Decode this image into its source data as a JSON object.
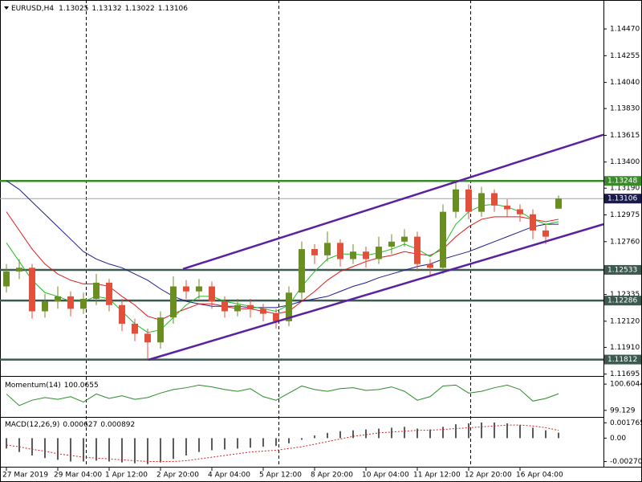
{
  "chart_data": [
    {
      "type": "candlestick",
      "title": "EURUSD,H4",
      "header_values": [
        1.13025,
        1.13132,
        1.13022,
        1.13106
      ],
      "categories": [
        "27 Mar 2019",
        null,
        null,
        null,
        "29 Mar 04:00",
        null,
        null,
        null,
        "1 Apr 12:00",
        null,
        null,
        null,
        "2 Apr 20:00",
        null,
        null,
        null,
        "4 Apr 04:00",
        null,
        null,
        null,
        "5 Apr 12:00",
        null,
        null,
        null,
        "8 Apr 20:00",
        null,
        null,
        null,
        "10 Apr 04:00",
        null,
        null,
        null,
        "11 Apr 12:00",
        null,
        null,
        null,
        "12 Apr 20:00",
        null,
        null,
        null,
        "16 Apr 04:00",
        null,
        null,
        null
      ],
      "open": [
        1.124,
        1.1252,
        1.1255,
        1.122,
        1.1228,
        1.1232,
        1.1222,
        1.123,
        1.1243,
        1.1225,
        1.121,
        1.1202,
        1.1195,
        1.1215,
        1.124,
        1.1236,
        1.124,
        1.1228,
        1.122,
        1.1225,
        1.1222,
        1.1218,
        1.1212,
        1.1235,
        1.127,
        1.1265,
        1.1275,
        1.1262,
        1.1268,
        1.1262,
        1.1272,
        1.1276,
        1.128,
        1.1258,
        1.1255,
        1.13,
        1.1318,
        1.13,
        1.1315,
        1.1305,
        1.1302,
        1.1298,
        1.1285,
        1.13025
      ],
      "high": [
        1.1258,
        1.1262,
        1.1258,
        1.1234,
        1.124,
        1.1236,
        1.1235,
        1.125,
        1.1246,
        1.123,
        1.1214,
        1.1206,
        1.122,
        1.1248,
        1.1245,
        1.1246,
        1.1244,
        1.1232,
        1.123,
        1.123,
        1.1226,
        1.1222,
        1.124,
        1.1276,
        1.1274,
        1.1284,
        1.1278,
        1.1274,
        1.1272,
        1.128,
        1.1282,
        1.1286,
        1.1284,
        1.1262,
        1.1306,
        1.1325,
        1.1322,
        1.132,
        1.1318,
        1.131,
        1.1306,
        1.1302,
        1.129,
        1.13132
      ],
      "low": [
        1.1235,
        1.1246,
        1.1214,
        1.1215,
        1.1222,
        1.1216,
        1.1218,
        1.1225,
        1.122,
        1.1204,
        1.1196,
        1.1182,
        1.119,
        1.121,
        1.123,
        1.123,
        1.1222,
        1.1215,
        1.1216,
        1.1215,
        1.1212,
        1.1206,
        1.1208,
        1.123,
        1.1258,
        1.126,
        1.1256,
        1.1258,
        1.1255,
        1.1258,
        1.1266,
        1.1272,
        1.1252,
        1.1248,
        1.125,
        1.1295,
        1.1294,
        1.1296,
        1.13,
        1.1296,
        1.1292,
        1.1278,
        1.1274,
        1.13022
      ],
      "close": [
        1.1252,
        1.1255,
        1.122,
        1.1228,
        1.1232,
        1.1222,
        1.123,
        1.1243,
        1.1225,
        1.121,
        1.1202,
        1.1195,
        1.1215,
        1.124,
        1.1236,
        1.124,
        1.1228,
        1.122,
        1.1225,
        1.1222,
        1.1218,
        1.1212,
        1.1235,
        1.127,
        1.1265,
        1.1275,
        1.1262,
        1.1268,
        1.1262,
        1.1272,
        1.1276,
        1.128,
        1.1258,
        1.1255,
        1.13,
        1.1318,
        1.13,
        1.1315,
        1.1305,
        1.1302,
        1.1298,
        1.1285,
        1.128,
        1.13106
      ],
      "up_color": "#6b8e23",
      "down_color": "#e0503a",
      "overlays": [
        {
          "color": "#1c1c8c",
          "values": [
            1.1325,
            1.1318,
            1.1308,
            1.1298,
            1.1288,
            1.1278,
            1.1268,
            1.1262,
            1.1258,
            1.1255,
            1.125,
            1.1245,
            1.1238,
            1.1232,
            1.1228,
            1.1226,
            1.1224,
            1.1224,
            1.1224,
            1.1223,
            1.1223,
            1.1223,
            1.1225,
            1.1228,
            1.123,
            1.1232,
            1.1236,
            1.124,
            1.1243,
            1.1247,
            1.125,
            1.1253,
            1.1256,
            1.1258,
            1.1262,
            1.1265,
            1.1268,
            1.1272,
            1.1276,
            1.128,
            1.1284,
            1.1288,
            1.129,
            1.129
          ]
        },
        {
          "color": "#dd1a1a",
          "values": [
            1.13,
            1.1285,
            1.127,
            1.1258,
            1.125,
            1.1245,
            1.1242,
            1.1242,
            1.124,
            1.1232,
            1.1225,
            1.1216,
            1.1213,
            1.1218,
            1.1222,
            1.1226,
            1.1226,
            1.1224,
            1.1222,
            1.1222,
            1.122,
            1.1218,
            1.122,
            1.1228,
            1.1236,
            1.1245,
            1.1252,
            1.1256,
            1.126,
            1.1263,
            1.1265,
            1.1268,
            1.1266,
            1.1265,
            1.127,
            1.128,
            1.1288,
            1.1294,
            1.1296,
            1.1296,
            1.1296,
            1.1294,
            1.1292,
            1.1294
          ]
        },
        {
          "color": "#22bb22",
          "values": [
            1.1275,
            1.126,
            1.1245,
            1.1235,
            1.1232,
            1.1228,
            1.1228,
            1.1232,
            1.123,
            1.122,
            1.121,
            1.1203,
            1.1205,
            1.1215,
            1.1225,
            1.1232,
            1.1232,
            1.1228,
            1.1226,
            1.1224,
            1.1222,
            1.122,
            1.1225,
            1.124,
            1.1252,
            1.1262,
            1.1266,
            1.1266,
            1.1265,
            1.1267,
            1.127,
            1.1274,
            1.127,
            1.1264,
            1.1272,
            1.129,
            1.13,
            1.1305,
            1.1306,
            1.1304,
            1.13,
            1.1294,
            1.129,
            1.1292
          ]
        }
      ],
      "trendlines": [
        {
          "x": [
            13.75,
            46.5
          ],
          "y": [
            1.1254,
            1.1362
          ],
          "color": "#5a22a0"
        },
        {
          "x": [
            11.06,
            46.5
          ],
          "y": [
            1.1181,
            1.129
          ],
          "color": "#5a22a0"
        }
      ],
      "levels": [
        {
          "value": 1.13248,
          "color": "#3a8a2a"
        },
        {
          "value": 1.13106,
          "color": "#1a1a4a"
        },
        {
          "value": 1.12533,
          "color": "#3c5a50"
        },
        {
          "value": 1.12286,
          "color": "#3c5a50"
        },
        {
          "value": 1.11812,
          "color": "#3c5a50"
        }
      ],
      "ylim": [
        1.1168,
        1.1469
      ],
      "yticks": [
        {
          "value": 1.1447,
          "label": "1.14470"
        },
        1.14255,
        {
          "value": 1.1404,
          "label": "1.14040"
        },
        {
          "value": 1.1383,
          "label": "1.13830"
        },
        1.13615,
        {
          "value": 1.134,
          "label": "1.13400"
        },
        {
          "value": 1.1319,
          "label": "1.13190"
        },
        1.12975,
        {
          "value": 1.1276,
          "label": "1.12760"
        },
        1.12335,
        {
          "value": 1.1212,
          "label": "1.12120"
        },
        {
          "value": 1.1191,
          "label": "1.11910"
        },
        1.11695
      ]
    },
    {
      "type": "line",
      "title": "Momentum(14)",
      "current": 100.0655,
      "color": "#2a8a2a",
      "values": [
        100.05,
        99.4,
        99.7,
        99.85,
        99.75,
        99.9,
        99.6,
        100.05,
        99.8,
        99.95,
        99.75,
        99.85,
        100.1,
        100.3,
        100.4,
        100.55,
        100.45,
        100.3,
        100.2,
        100.35,
        99.9,
        99.7,
        100.1,
        100.5,
        100.3,
        100.2,
        100.35,
        100.4,
        100.25,
        100.3,
        100.45,
        100.2,
        99.7,
        99.9,
        100.5,
        100.55,
        100.1,
        100.2,
        100.4,
        100.55,
        100.3,
        99.65,
        99.8,
        100.0655
      ],
      "ylim": [
        98.76,
        100.973
      ],
      "yticks": [
        100.6044,
        99.129
      ]
    },
    {
      "type": "macd",
      "title": "MACD(12,26,9)",
      "current": [
        0.000627,
        0.000892
      ],
      "color": "#222222",
      "signal_color": "#cc2222",
      "values": [
        -0.0012,
        -0.0016,
        -0.002,
        -0.0023,
        -0.0025,
        -0.0027,
        -0.0027,
        -0.0026,
        -0.0027,
        -0.0028,
        -0.0029,
        -0.003,
        -0.0028,
        -0.0024,
        -0.002,
        -0.0016,
        -0.0014,
        -0.0013,
        -0.0012,
        -0.0011,
        -0.001,
        -0.0009,
        -0.0006,
        -0.0002,
        0.0003,
        0.0006,
        0.0008,
        0.0009,
        0.001,
        0.0011,
        0.0012,
        0.0013,
        0.0011,
        0.001,
        0.0013,
        0.0016,
        0.0017,
        0.0018,
        0.0018,
        0.0017,
        0.0015,
        0.0012,
        0.0009,
        0.000627
      ],
      "signal": [
        -0.0008,
        -0.001,
        -0.0013,
        -0.0015,
        -0.0018,
        -0.002,
        -0.0022,
        -0.0023,
        -0.0024,
        -0.0025,
        -0.0026,
        -0.0027,
        -0.0027,
        -0.0027,
        -0.0026,
        -0.0024,
        -0.0022,
        -0.002,
        -0.0018,
        -0.0016,
        -0.0015,
        -0.0014,
        -0.0012,
        -0.001,
        -0.0007,
        -0.0004,
        -0.0001,
        0.0002,
        0.0004,
        0.0006,
        0.0007,
        0.0008,
        0.0009,
        0.0009,
        0.001,
        0.0011,
        0.0012,
        0.0013,
        0.0014,
        0.0015,
        0.0015,
        0.0014,
        0.0012,
        0.000892
      ],
      "ylim": [
        -0.0033,
        0.00235
      ],
      "yticks": [
        0.001765,
        {
          "value": 0,
          "label": "0.00"
        },
        -0.002703
      ]
    }
  ]
}
